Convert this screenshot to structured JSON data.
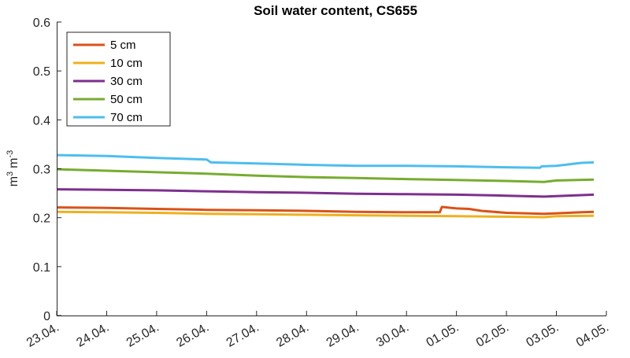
{
  "chart_data": {
    "type": "line",
    "title": "Soil water content, CS655",
    "ylabel": "m^3 m^-3",
    "ylabel_parts": {
      "base1": "m",
      "exp1": "3",
      "base2": "m",
      "exp2": "-3"
    },
    "ylim": [
      0,
      0.6
    ],
    "yticks": [
      0,
      0.1,
      0.2,
      0.3,
      0.4,
      0.5,
      0.6
    ],
    "ytick_labels": [
      "0",
      "0.1",
      "0.2",
      "0.3",
      "0.4",
      "0.5",
      "0.6"
    ],
    "xlim": [
      "23.04.",
      "04.05."
    ],
    "xtick_labels": [
      "23.04.",
      "24.04.",
      "25.04.",
      "26.04.",
      "27.04.",
      "28.04.",
      "29.04.",
      "30.04.",
      "01.05.",
      "02.05.",
      "03.05.",
      "04.05."
    ],
    "legend_position": "top-left",
    "grid": false,
    "series": [
      {
        "name": "5 cm",
        "color": "#D95319",
        "points": [
          [
            "23.04.",
            0.221
          ],
          [
            "24.04.",
            0.22
          ],
          [
            "25.04.",
            0.218
          ],
          [
            "26.04.",
            0.216
          ],
          [
            "27.04.",
            0.215
          ],
          [
            "28.04.",
            0.214
          ],
          [
            "29.04.",
            0.212
          ],
          [
            "30.04.",
            0.211
          ],
          [
            "30.04. 16:00",
            0.211
          ],
          [
            "30.04. 17:00",
            0.222
          ],
          [
            "01.05.",
            0.219
          ],
          [
            "01.05. 06:00",
            0.218
          ],
          [
            "01.05. 12:00",
            0.214
          ],
          [
            "02.05.",
            0.21
          ],
          [
            "02.05. 18:00",
            0.208
          ],
          [
            "03.05.",
            0.209
          ],
          [
            "03.05. 12:00",
            0.211
          ],
          [
            "03.05. 18:00",
            0.212
          ]
        ]
      },
      {
        "name": "10 cm",
        "color": "#EDB120",
        "points": [
          [
            "23.04.",
            0.212
          ],
          [
            "24.04.",
            0.211
          ],
          [
            "25.04.",
            0.21
          ],
          [
            "26.04.",
            0.208
          ],
          [
            "27.04.",
            0.207
          ],
          [
            "28.04.",
            0.206
          ],
          [
            "29.04.",
            0.205
          ],
          [
            "30.04.",
            0.204
          ],
          [
            "01.05.",
            0.203
          ],
          [
            "02.05.",
            0.202
          ],
          [
            "02.05. 18:00",
            0.201
          ],
          [
            "03.05.",
            0.203
          ],
          [
            "03.05. 18:00",
            0.204
          ]
        ]
      },
      {
        "name": "30 cm",
        "color": "#7E2F8E",
        "points": [
          [
            "23.04.",
            0.258
          ],
          [
            "24.04.",
            0.257
          ],
          [
            "25.04.",
            0.256
          ],
          [
            "26.04.",
            0.254
          ],
          [
            "27.04.",
            0.252
          ],
          [
            "28.04.",
            0.251
          ],
          [
            "29.04.",
            0.249
          ],
          [
            "30.04.",
            0.248
          ],
          [
            "01.05.",
            0.247
          ],
          [
            "02.05.",
            0.245
          ],
          [
            "02.05. 18:00",
            0.243
          ],
          [
            "03.05.",
            0.244
          ],
          [
            "03.05. 18:00",
            0.247
          ]
        ]
      },
      {
        "name": "50 cm",
        "color": "#77AC30",
        "points": [
          [
            "23.04.",
            0.299
          ],
          [
            "24.04.",
            0.296
          ],
          [
            "25.04.",
            0.293
          ],
          [
            "26.04.",
            0.29
          ],
          [
            "27.04.",
            0.286
          ],
          [
            "28.04.",
            0.283
          ],
          [
            "29.04.",
            0.281
          ],
          [
            "30.04.",
            0.279
          ],
          [
            "01.05.",
            0.277
          ],
          [
            "02.05.",
            0.275
          ],
          [
            "02.05. 18:00",
            0.273
          ],
          [
            "03.05.",
            0.276
          ],
          [
            "03.05. 18:00",
            0.278
          ]
        ]
      },
      {
        "name": "70 cm",
        "color": "#4DBEEE",
        "points": [
          [
            "23.04.",
            0.328
          ],
          [
            "24.04.",
            0.326
          ],
          [
            "25.04.",
            0.322
          ],
          [
            "26.04.",
            0.319
          ],
          [
            "26.04. 02:00",
            0.313
          ],
          [
            "27.04.",
            0.311
          ],
          [
            "28.04.",
            0.308
          ],
          [
            "29.04.",
            0.306
          ],
          [
            "30.04.",
            0.306
          ],
          [
            "01.05.",
            0.305
          ],
          [
            "02.05.",
            0.303
          ],
          [
            "02.05. 16:00",
            0.302
          ],
          [
            "02.05. 17:00",
            0.305
          ],
          [
            "03.05.",
            0.306
          ],
          [
            "03.05. 12:00",
            0.312
          ],
          [
            "03.05. 18:00",
            0.313
          ]
        ]
      }
    ]
  }
}
